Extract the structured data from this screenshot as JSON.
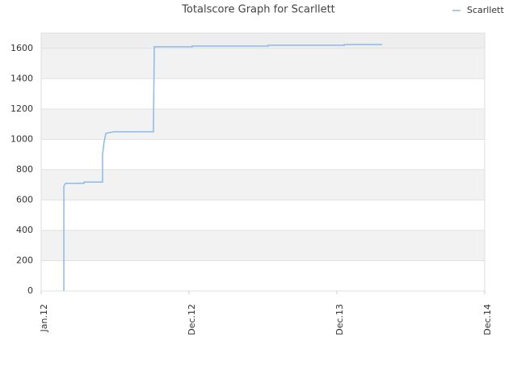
{
  "chart_data": {
    "type": "line",
    "title": "Totalscore Graph for Scarllett",
    "x": [
      1.84,
      1.84,
      1.97,
      3.48,
      3.48,
      4.98,
      4.98,
      5.1,
      5.25,
      5.9,
      9.11,
      9.11,
      9.18,
      12.26,
      12.26,
      18.43,
      18.43,
      24.6,
      24.6,
      27.67
    ],
    "series": [
      {
        "name": "Scarllett",
        "color": "#88bbee",
        "values": [
          0,
          690,
          710,
          710,
          718,
          718,
          900,
          980,
          1040,
          1050,
          1050,
          1060,
          1610,
          1610,
          1615,
          1615,
          1620,
          1620,
          1625,
          1625
        ]
      }
    ],
    "xlim": [
      0,
      36
    ],
    "xticks": [
      {
        "value": 0,
        "label": "Jan.12"
      },
      {
        "value": 12,
        "label": "Dec.12"
      },
      {
        "value": 24,
        "label": "Dec.13"
      },
      {
        "value": 36,
        "label": "Dec.14"
      }
    ],
    "ylim": [
      0,
      1700
    ],
    "yticks": [
      0,
      200,
      400,
      600,
      800,
      1000,
      1200,
      1400,
      1600
    ],
    "grid": true,
    "legend": "top-right"
  }
}
